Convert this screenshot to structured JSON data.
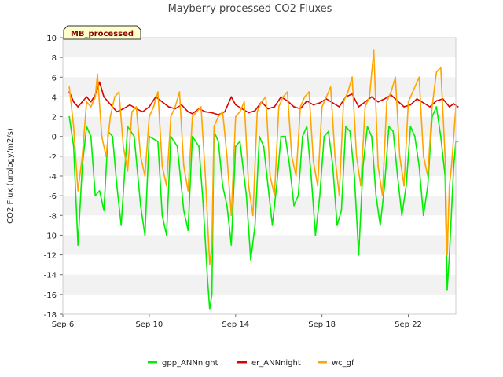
{
  "chart_data": {
    "type": "line",
    "title": "Mayberry processed CO2 Fluxes",
    "ylabel": "CO2 Flux (urology/m2/s)",
    "xlabel": "",
    "badge": "MB_processed",
    "xlim_days": [
      6.0,
      24.2
    ],
    "ylim": [
      -18,
      10
    ],
    "y_ticks": [
      -18,
      -16,
      -14,
      -12,
      -10,
      -8,
      -6,
      -4,
      -2,
      0,
      2,
      4,
      6,
      8,
      10
    ],
    "x_ticks": [
      {
        "day": 6,
        "label": "Sep 6"
      },
      {
        "day": 10,
        "label": "Sep 10"
      },
      {
        "day": 14,
        "label": "Sep 14"
      },
      {
        "day": 18,
        "label": "Sep 18"
      },
      {
        "day": 22,
        "label": "Sep 22"
      }
    ],
    "grid": "horizontal bands",
    "legend_position": "bottom",
    "series": [
      {
        "name": "gpp_ANNnight",
        "color": "#00ee00",
        "points": [
          [
            6.3,
            2.0
          ],
          [
            6.5,
            -1.0
          ],
          [
            6.7,
            -11.0
          ],
          [
            6.9,
            -3.0
          ],
          [
            7.1,
            1.0
          ],
          [
            7.3,
            0.0
          ],
          [
            7.5,
            -6.0
          ],
          [
            7.7,
            -5.5
          ],
          [
            7.9,
            -7.5
          ],
          [
            8.1,
            0.5
          ],
          [
            8.3,
            0.0
          ],
          [
            8.5,
            -5.0
          ],
          [
            8.7,
            -9.0
          ],
          [
            9.0,
            1.0
          ],
          [
            9.3,
            0.0
          ],
          [
            9.6,
            -7.0
          ],
          [
            9.8,
            -10.0
          ],
          [
            10.0,
            0.0
          ],
          [
            10.4,
            -0.5
          ],
          [
            10.6,
            -8.0
          ],
          [
            10.8,
            -10.0
          ],
          [
            11.0,
            0.0
          ],
          [
            11.3,
            -1.0
          ],
          [
            11.6,
            -7.5
          ],
          [
            11.8,
            -9.5
          ],
          [
            12.0,
            0.0
          ],
          [
            12.3,
            -1.0
          ],
          [
            12.5,
            -7.0
          ],
          [
            12.7,
            -14.5
          ],
          [
            12.8,
            -17.5
          ],
          [
            12.9,
            -16.0
          ],
          [
            13.0,
            0.5
          ],
          [
            13.2,
            -0.5
          ],
          [
            13.4,
            -5.0
          ],
          [
            13.6,
            -7.0
          ],
          [
            13.8,
            -11.0
          ],
          [
            14.0,
            -1.0
          ],
          [
            14.2,
            -0.5
          ],
          [
            14.5,
            -6.0
          ],
          [
            14.7,
            -12.5
          ],
          [
            14.9,
            -9.0
          ],
          [
            15.1,
            0.0
          ],
          [
            15.3,
            -1.0
          ],
          [
            15.5,
            -5.0
          ],
          [
            15.7,
            -9.0
          ],
          [
            15.9,
            -5.0
          ],
          [
            16.1,
            0.0
          ],
          [
            16.3,
            0.0
          ],
          [
            16.5,
            -3.0
          ],
          [
            16.7,
            -7.0
          ],
          [
            16.9,
            -6.0
          ],
          [
            17.1,
            0.0
          ],
          [
            17.3,
            1.0
          ],
          [
            17.5,
            -4.0
          ],
          [
            17.7,
            -10.0
          ],
          [
            17.9,
            -6.0
          ],
          [
            18.1,
            0.0
          ],
          [
            18.3,
            0.5
          ],
          [
            18.5,
            -3.0
          ],
          [
            18.7,
            -9.0
          ],
          [
            18.9,
            -7.5
          ],
          [
            19.1,
            1.0
          ],
          [
            19.3,
            0.5
          ],
          [
            19.5,
            -4.0
          ],
          [
            19.7,
            -12.0
          ],
          [
            19.9,
            -3.0
          ],
          [
            20.1,
            1.0
          ],
          [
            20.3,
            0.0
          ],
          [
            20.5,
            -6.0
          ],
          [
            20.7,
            -9.0
          ],
          [
            20.9,
            -5.0
          ],
          [
            21.1,
            1.0
          ],
          [
            21.3,
            0.5
          ],
          [
            21.5,
            -4.0
          ],
          [
            21.7,
            -8.0
          ],
          [
            21.9,
            -5.0
          ],
          [
            22.1,
            1.0
          ],
          [
            22.3,
            0.0
          ],
          [
            22.5,
            -3.0
          ],
          [
            22.7,
            -8.0
          ],
          [
            22.9,
            -5.0
          ],
          [
            23.1,
            2.0
          ],
          [
            23.3,
            3.0
          ],
          [
            23.5,
            0.0
          ],
          [
            23.7,
            -4.0
          ],
          [
            23.8,
            -15.5
          ],
          [
            23.9,
            -12.0
          ],
          [
            24.1,
            -3.0
          ],
          [
            24.2,
            -0.5
          ],
          [
            24.3,
            -0.5
          ]
        ]
      },
      {
        "name": "er_ANNnight",
        "color": "#dd0000",
        "points": [
          [
            6.3,
            4.5
          ],
          [
            6.5,
            3.5
          ],
          [
            6.7,
            3.0
          ],
          [
            6.9,
            3.5
          ],
          [
            7.1,
            4.0
          ],
          [
            7.3,
            3.5
          ],
          [
            7.5,
            4.2
          ],
          [
            7.7,
            5.5
          ],
          [
            7.9,
            4.0
          ],
          [
            8.1,
            3.5
          ],
          [
            8.3,
            3.0
          ],
          [
            8.5,
            2.5
          ],
          [
            8.8,
            2.8
          ],
          [
            9.1,
            3.2
          ],
          [
            9.4,
            2.8
          ],
          [
            9.7,
            2.5
          ],
          [
            10.0,
            3.0
          ],
          [
            10.3,
            4.0
          ],
          [
            10.6,
            3.5
          ],
          [
            10.9,
            3.0
          ],
          [
            11.2,
            2.8
          ],
          [
            11.5,
            3.2
          ],
          [
            11.8,
            2.5
          ],
          [
            12.0,
            2.3
          ],
          [
            12.3,
            2.8
          ],
          [
            12.6,
            2.5
          ],
          [
            12.9,
            2.4
          ],
          [
            13.2,
            2.2
          ],
          [
            13.5,
            2.5
          ],
          [
            13.8,
            4.0
          ],
          [
            14.0,
            3.2
          ],
          [
            14.3,
            2.8
          ],
          [
            14.6,
            2.4
          ],
          [
            14.9,
            2.6
          ],
          [
            15.2,
            3.5
          ],
          [
            15.5,
            2.8
          ],
          [
            15.8,
            3.0
          ],
          [
            16.1,
            4.0
          ],
          [
            16.4,
            3.6
          ],
          [
            16.7,
            3.0
          ],
          [
            17.0,
            2.8
          ],
          [
            17.3,
            3.6
          ],
          [
            17.6,
            3.2
          ],
          [
            17.9,
            3.4
          ],
          [
            18.2,
            3.8
          ],
          [
            18.5,
            3.4
          ],
          [
            18.8,
            3.0
          ],
          [
            19.1,
            4.0
          ],
          [
            19.4,
            4.3
          ],
          [
            19.7,
            3.0
          ],
          [
            20.0,
            3.5
          ],
          [
            20.3,
            4.0
          ],
          [
            20.6,
            3.5
          ],
          [
            20.9,
            3.8
          ],
          [
            21.2,
            4.2
          ],
          [
            21.5,
            3.6
          ],
          [
            21.8,
            3.0
          ],
          [
            22.1,
            3.2
          ],
          [
            22.4,
            3.8
          ],
          [
            22.7,
            3.4
          ],
          [
            23.0,
            3.0
          ],
          [
            23.3,
            3.6
          ],
          [
            23.6,
            3.8
          ],
          [
            23.9,
            3.0
          ],
          [
            24.1,
            3.3
          ],
          [
            24.3,
            3.0
          ]
        ]
      },
      {
        "name": "wc_gf",
        "color": "#ffa500",
        "points": [
          [
            6.3,
            5.0
          ],
          [
            6.5,
            1.0
          ],
          [
            6.7,
            -5.5
          ],
          [
            6.9,
            -2.0
          ],
          [
            7.1,
            3.5
          ],
          [
            7.3,
            3.0
          ],
          [
            7.5,
            4.0
          ],
          [
            7.6,
            6.3
          ],
          [
            7.8,
            0.0
          ],
          [
            8.0,
            -2.0
          ],
          [
            8.2,
            2.0
          ],
          [
            8.4,
            4.0
          ],
          [
            8.6,
            4.5
          ],
          [
            8.8,
            -1.0
          ],
          [
            9.0,
            -3.5
          ],
          [
            9.2,
            2.5
          ],
          [
            9.4,
            3.0
          ],
          [
            9.6,
            -2.0
          ],
          [
            9.8,
            -4.0
          ],
          [
            10.0,
            2.0
          ],
          [
            10.2,
            3.0
          ],
          [
            10.4,
            4.5
          ],
          [
            10.6,
            -3.0
          ],
          [
            10.8,
            -5.0
          ],
          [
            11.0,
            2.0
          ],
          [
            11.2,
            3.0
          ],
          [
            11.4,
            4.5
          ],
          [
            11.6,
            -3.0
          ],
          [
            11.8,
            -5.5
          ],
          [
            12.0,
            2.0
          ],
          [
            12.2,
            2.5
          ],
          [
            12.4,
            3.0
          ],
          [
            12.6,
            -4.0
          ],
          [
            12.8,
            -13.0
          ],
          [
            12.9,
            -11.0
          ],
          [
            13.0,
            1.0
          ],
          [
            13.2,
            2.0
          ],
          [
            13.4,
            2.5
          ],
          [
            13.6,
            -2.0
          ],
          [
            13.8,
            -8.0
          ],
          [
            14.0,
            2.0
          ],
          [
            14.2,
            2.5
          ],
          [
            14.4,
            3.5
          ],
          [
            14.6,
            -5.0
          ],
          [
            14.8,
            -8.0
          ],
          [
            15.0,
            2.5
          ],
          [
            15.2,
            3.5
          ],
          [
            15.4,
            4.0
          ],
          [
            15.6,
            -4.0
          ],
          [
            15.8,
            -6.0
          ],
          [
            16.0,
            3.0
          ],
          [
            16.2,
            4.0
          ],
          [
            16.4,
            4.5
          ],
          [
            16.6,
            -2.0
          ],
          [
            16.8,
            -4.0
          ],
          [
            17.0,
            3.0
          ],
          [
            17.2,
            4.0
          ],
          [
            17.4,
            4.5
          ],
          [
            17.6,
            -2.5
          ],
          [
            17.8,
            -5.0
          ],
          [
            18.0,
            3.0
          ],
          [
            18.2,
            4.0
          ],
          [
            18.4,
            5.0
          ],
          [
            18.6,
            -2.0
          ],
          [
            18.8,
            -6.0
          ],
          [
            19.0,
            3.5
          ],
          [
            19.2,
            4.5
          ],
          [
            19.4,
            6.0
          ],
          [
            19.6,
            -2.0
          ],
          [
            19.8,
            -5.0
          ],
          [
            20.0,
            3.0
          ],
          [
            20.2,
            4.0
          ],
          [
            20.4,
            8.7
          ],
          [
            20.6,
            -3.0
          ],
          [
            20.8,
            -6.0
          ],
          [
            21.0,
            3.5
          ],
          [
            21.2,
            4.5
          ],
          [
            21.4,
            6.0
          ],
          [
            21.6,
            -2.0
          ],
          [
            21.8,
            -5.0
          ],
          [
            22.0,
            3.5
          ],
          [
            22.2,
            4.5
          ],
          [
            22.5,
            6.0
          ],
          [
            22.7,
            -2.0
          ],
          [
            22.9,
            -4.0
          ],
          [
            23.1,
            3.0
          ],
          [
            23.3,
            6.5
          ],
          [
            23.5,
            7.0
          ],
          [
            23.7,
            -2.0
          ],
          [
            23.8,
            -12.0
          ],
          [
            23.9,
            -5.0
          ],
          [
            24.0,
            -3.0
          ],
          [
            24.2,
            3.0
          ]
        ]
      }
    ]
  }
}
